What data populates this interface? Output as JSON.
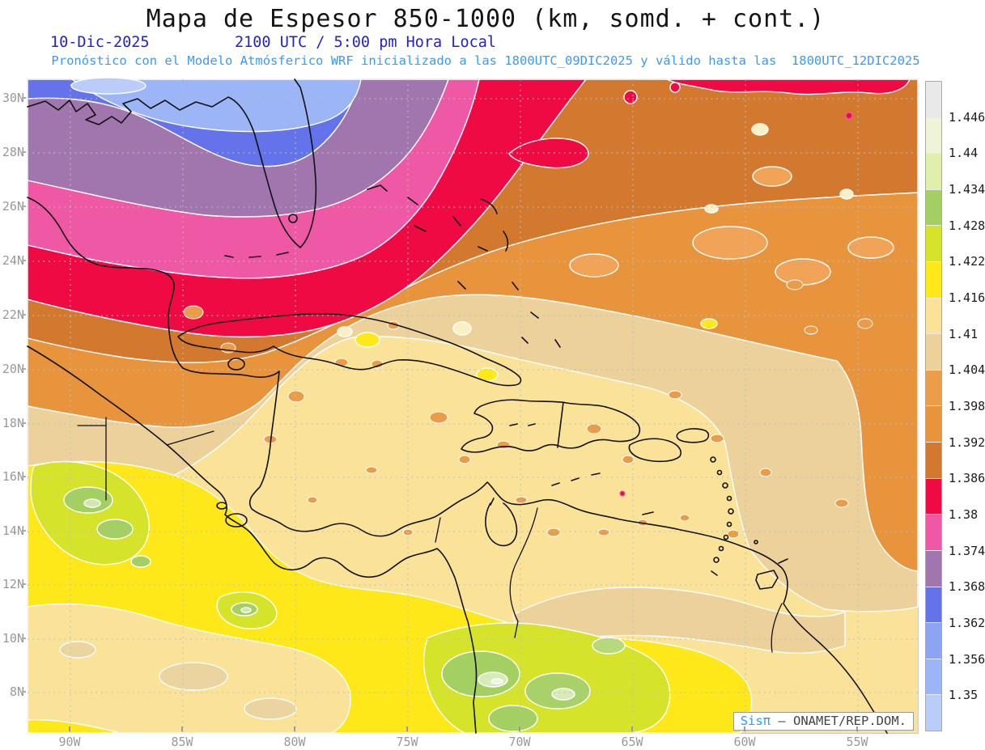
{
  "title": {
    "text": "Mapa de Espesor 850-1000 (km, somd. + cont.)"
  },
  "subtitle": {
    "date": "10-Dic-2025",
    "time": "2100 UTC / 5:00 pm Hora Local",
    "forecast": "Pronóstico con el Modelo Atmósferico WRF inicializado a las 1800UTC_09DIC2025 y válido hasta las  1800UTC_12DIC2025"
  },
  "axes": {
    "lat_labels": [
      "30N",
      "28N",
      "26N",
      "24N",
      "22N",
      "20N",
      "18N",
      "16N",
      "14N",
      "12N",
      "10N",
      "8N"
    ],
    "lon_labels": [
      "90W",
      "85W",
      "80W",
      "75W",
      "70W",
      "65W",
      "60W",
      "55W"
    ]
  },
  "colorbar": {
    "labels": [
      "1.446",
      "1.44",
      "1.434",
      "1.428",
      "1.422",
      "1.416",
      "1.41",
      "1.404",
      "1.398",
      "1.392",
      "1.386",
      "1.38",
      "1.374",
      "1.368",
      "1.362",
      "1.356",
      "1.35"
    ],
    "segment_colors_top_to_bottom": [
      "#e9e9e9",
      "#eff4d9",
      "#e0f0ac",
      "#a3cf63",
      "#d5e42b",
      "#ffe81a",
      "#fae398",
      "#edd19b",
      "#eb9d49",
      "#e8943c",
      "#d3792f",
      "#f00a44",
      "#ee58a5",
      "#a176ae",
      "#6473ea",
      "#8ca4f2",
      "#9bb5f6",
      "#b9ccfa"
    ]
  },
  "attribution": {
    "brand": "Sisπ",
    "text": " – ONAMET/REP.DOM."
  },
  "colors": {
    "title": "#151515",
    "subtitle_primary": "#2323cd",
    "subtitle_secondary": "#3b9af8",
    "axis_label": "#999999",
    "grid": "#b8bfca",
    "coastline": "#111111",
    "contour": "#ffffff"
  }
}
